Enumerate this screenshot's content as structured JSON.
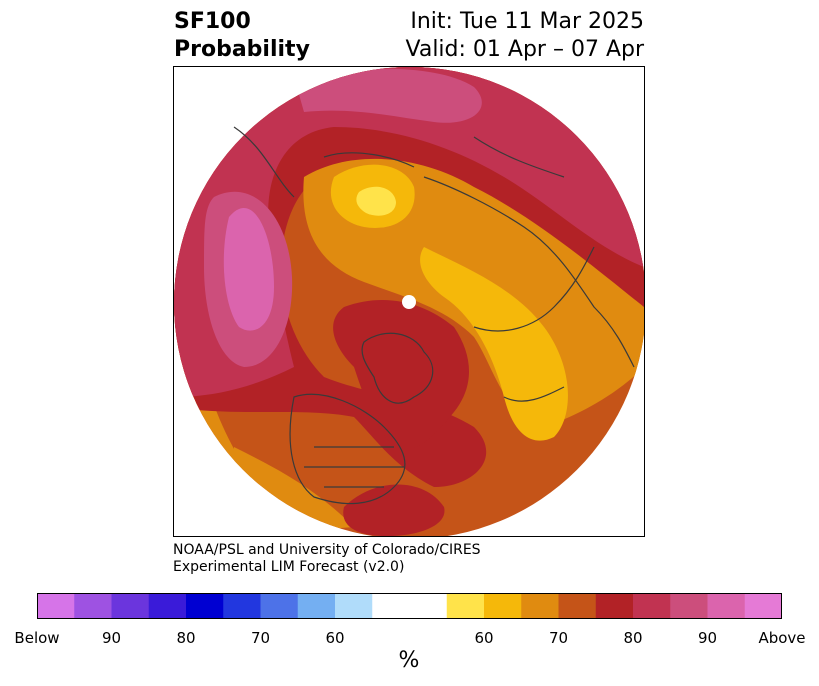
{
  "title": {
    "line1": "SF100",
    "line2": "Probability",
    "init": "Init: Tue 11 Mar 2025",
    "valid": "Valid: 01 Apr – 07 Apr"
  },
  "credit": {
    "line1": "NOAA/PSL and University of Colorado/CIRES",
    "line2": "Experimental LIM Forecast (v2.0)"
  },
  "colorbar": {
    "colors": [
      "#d674e8",
      "#9e52e2",
      "#6b35dd",
      "#3a1bd9",
      "#0000d2",
      "#2237df",
      "#4d72e8",
      "#74aff2",
      "#b0dcfa",
      "#ffffff",
      "#ffffff",
      "#ffe34a",
      "#f5b80a",
      "#e08b10",
      "#c55418",
      "#b22226",
      "#c13351",
      "#cc4e7c",
      "#db64ad",
      "#e57ad6"
    ],
    "tick_labels": [
      "Below",
      "90",
      "80",
      "70",
      "60",
      "60",
      "70",
      "80",
      "90",
      "Above"
    ],
    "unit": "%"
  },
  "legend_colors": {
    "base": "#c55418",
    "dark_red": "#b22226",
    "crimson": "#c13351",
    "pink": "#cc4e7c",
    "magenta": "#db64ad",
    "orange": "#e08b10",
    "gold": "#f5b80a",
    "yellow": "#ffe34a"
  }
}
